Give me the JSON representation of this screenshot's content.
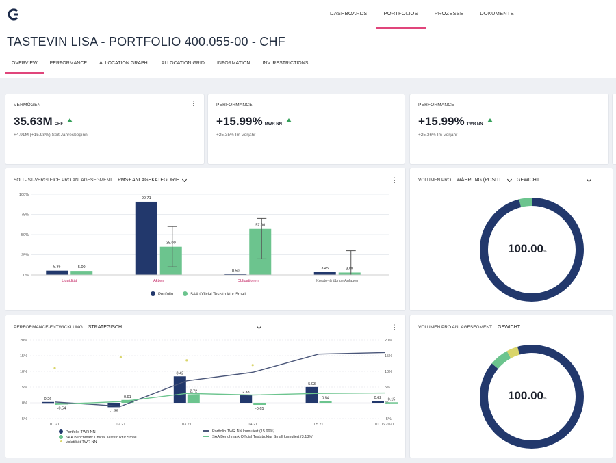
{
  "colors": {
    "navy": "#22386c",
    "green": "#6cc48e",
    "accent": "#e0457b",
    "yellow": "#d9d56a",
    "line_navy": "#4a5679",
    "line_green": "#6cc48e"
  },
  "topnav": {
    "items": [
      "DASHBOARDS",
      "PORTFOLIOS",
      "PROZESSE",
      "DOKUMENTE"
    ],
    "active": 1
  },
  "header": {
    "title": "TASTEVIN LISA - PORTFOLIO 400.055-00 - CHF",
    "tabs": [
      "OVERVIEW",
      "PERFORMANCE",
      "ALLOCATION GRAPH.",
      "ALLOCATION GRID",
      "INFORMATION",
      "INV. RESTRICTIONS"
    ],
    "active_tab": 0
  },
  "kpis": [
    {
      "label": "VERMÖGEN",
      "value": "35.63M",
      "unit": "CHF",
      "sub": "+4.91M (+15.98%) Seit Jahresbeginn"
    },
    {
      "label": "PERFORMANCE",
      "value": "+15.99%",
      "unit": "MWR NN",
      "sub": "+25.35% Im Vorjahr"
    },
    {
      "label": "PERFORMANCE",
      "value": "+15.99%",
      "unit": "TWR NN",
      "sub": "+25.36% Im Vorjahr"
    }
  ],
  "soll_ist": {
    "title": "SOLL-IST-VERGLEICH PRO ANLAGESEGMENT",
    "selector": "PMS+ ANLAGEKATEGORIE",
    "legend": [
      "Portfolio",
      "SAA Official Teststruktur Small"
    ]
  },
  "volumen_pro": {
    "title": "VOLUMEN PRO",
    "selector1": "WÄHRUNG (POSITI...",
    "selector2": "GEWICHT",
    "center_value": "100.00",
    "center_unit": "%"
  },
  "perf_entwicklung": {
    "title": "PERFORMANCE-ENTWICKLUNG",
    "selector": "STRATEGISCH",
    "legend": [
      "Portfolio TWR NN",
      "Portfolio TWR NN kumuliert (15.99%)",
      "SAA Benchmark Official Teststruktur Small",
      "SAA Benchmark Official Teststruktur Small kumuliert (3.13%)",
      "Volatilität TWR NN"
    ]
  },
  "volumen_segment": {
    "title": "VOLUMEN PRO ANLAGESEGMENT",
    "selector": "GEWICHT",
    "center_value": "100.00",
    "center_unit": "%"
  },
  "chart_data": [
    {
      "type": "bar",
      "categories": [
        "Liquidität",
        "Aktien",
        "Obligationen",
        "Krypto- & übrige Anlagen"
      ],
      "series": [
        {
          "name": "Portfolio",
          "values": [
            5.35,
            90.71,
            0.5,
            3.45
          ]
        },
        {
          "name": "SAA Official Teststruktur Small",
          "values": [
            5.0,
            35.0,
            57.0,
            3.0
          ]
        }
      ],
      "error_bars": [
        null,
        [
          10,
          60
        ],
        [
          20,
          70
        ],
        [
          0,
          30
        ]
      ],
      "ylim": [
        0,
        100
      ],
      "yticks": [
        "0%",
        "25%",
        "50%",
        "75%",
        "100%"
      ],
      "xlabel": "",
      "ylabel": ""
    },
    {
      "type": "bar",
      "categories": [
        "01.21",
        "02.21",
        "03.21",
        "04.21",
        "05.21",
        "01.06.2021"
      ],
      "series": [
        {
          "name": "Portfolio TWR NN",
          "values": [
            0.26,
            -1.39,
            8.42,
            2.38,
            5.03,
            0.62
          ]
        },
        {
          "name": "SAA Benchmark Official Teststruktur Small",
          "values": [
            -0.54,
            0.91,
            2.72,
            -0.65,
            0.54,
            0.15
          ]
        },
        {
          "name": "Portfolio TWR NN kumuliert (15.99%)",
          "values": [
            0.26,
            -1.1,
            7.0,
            9.7,
            15.5,
            16.0
          ]
        },
        {
          "name": "SAA Benchmark Official Teststruktur Small kumuliert (3.13%)",
          "values": [
            -0.5,
            0.4,
            3.0,
            2.5,
            3.0,
            3.13
          ]
        },
        {
          "name": "Volatilität TWR NN",
          "values": [
            11,
            14.5,
            13.5,
            12,
            null,
            null
          ]
        }
      ],
      "ylim": [
        -5,
        20
      ],
      "yticks": [
        "-5%",
        "0%",
        "5%",
        "10%",
        "15%",
        "20%"
      ],
      "xlabel": "",
      "ylabel": ""
    },
    {
      "type": "pie",
      "title": "VOLUMEN PRO",
      "values": [
        0.96,
        0.04
      ],
      "colors": [
        "#22386c",
        "#6cc48e"
      ],
      "center": "100.00%"
    },
    {
      "type": "pie",
      "title": "VOLUMEN PRO ANLAGESEGMENT",
      "values": [
        0.86,
        0.06,
        0.035,
        0.045
      ],
      "colors": [
        "#22386c",
        "#6cc48e",
        "#d9d56a",
        "#22386c"
      ],
      "center": "100.00%"
    }
  ]
}
